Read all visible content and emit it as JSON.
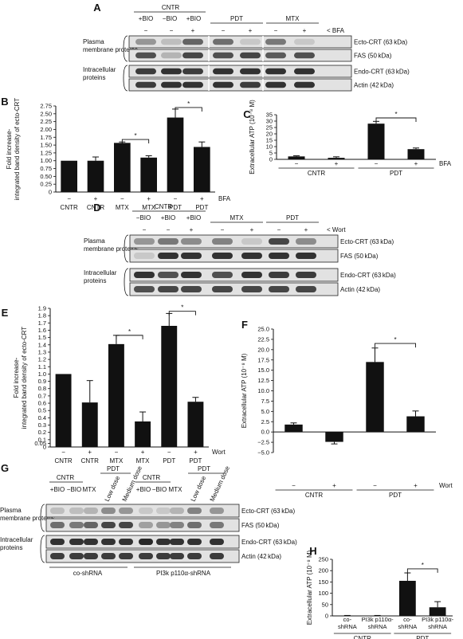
{
  "panels": {
    "A": {
      "label": "A",
      "header_groups": [
        "CNTR",
        "PDT",
        "MTX"
      ],
      "subgroups": [
        "+BIO",
        "−BIO",
        "+BIO"
      ],
      "signs": [
        "−",
        "−",
        "+",
        "−",
        "+",
        "−",
        "+"
      ],
      "treatment": "< BFA",
      "side_labels": [
        "Plasma membrane proteins",
        "Intracellular proteins"
      ],
      "bands": [
        "Ecto-CRT (63 kDa)",
        "FAS (50 kDa)",
        "Endo-CRT (63 kDa)",
        "Actin (42 kDa)"
      ]
    },
    "D": {
      "label": "D",
      "header_groups": [
        "CNTR",
        "MTX",
        "PDT"
      ],
      "subgroups": [
        "−BIO",
        "+BIO",
        "+BIO"
      ],
      "signs": [
        "−",
        "−",
        "+",
        "−",
        "+",
        "−",
        "+"
      ],
      "treatment": "< Wort",
      "side_labels": [
        "Plasma membrane proteins",
        "Intracellular proteins"
      ],
      "bands": [
        "Ecto-CRT (63 kDa)",
        "FAS (50 kDa)",
        "Endo-CRT (63 kDa)",
        "Actin (42 kDa)"
      ]
    },
    "G": {
      "label": "G",
      "groups_left": [
        "CNTR",
        "PDT"
      ],
      "groups_right": [
        "CNTR",
        "PDT"
      ],
      "lanes": [
        "+BIO",
        "−BIO",
        "MTX",
        "Low dose",
        "Medium dose",
        "+BIO",
        "−BIO",
        "MTX",
        "Low dose",
        "Medium dose"
      ],
      "side_labels": [
        "Plasma membrane proteins",
        "Intracellular proteins"
      ],
      "bands": [
        "Ecto-CRT (63 kDa)",
        "FAS (50 kDa)",
        "Endo-CRT (63 kDa)",
        "Actin (42 kDa)"
      ],
      "bottom_labels": [
        "co-shRNA",
        "PI3k p110α-shRNA"
      ]
    }
  },
  "chart_data": [
    {
      "panel": "B",
      "type": "bar",
      "ylabel": "Fold increase-\nintegrated band density of ecto-CRT",
      "ylim": [
        0,
        2.75
      ],
      "yticks": [
        "0",
        "0.25",
        "0.50",
        "0.75",
        "1.00",
        "1.25",
        "1.50",
        "1.75",
        "2.00",
        "2.25",
        "2.50",
        "2.75"
      ],
      "signs": [
        "−",
        "+",
        "−",
        "+",
        "−",
        "+"
      ],
      "categories": [
        "CNTR",
        "CNTR",
        "MTX",
        "MTX",
        "PDT",
        "PDT"
      ],
      "treatment": "BFA",
      "values": [
        1.0,
        1.0,
        1.57,
        1.1,
        2.38,
        1.44
      ],
      "errors": [
        0.0,
        0.12,
        0.03,
        0.06,
        0.27,
        0.16
      ],
      "significance": [
        "*",
        "*"
      ]
    },
    {
      "panel": "C",
      "type": "bar",
      "ylabel": "Extracellular ATP (10⁻⁸ M)",
      "ylim": [
        0,
        35
      ],
      "yticks": [
        "0",
        "5",
        "10",
        "15",
        "20",
        "25",
        "30",
        "35"
      ],
      "signs": [
        "−",
        "+",
        "−",
        "+"
      ],
      "groups": [
        "CNTR",
        "PDT"
      ],
      "treatment": "BFA",
      "values": [
        2.3,
        1.2,
        28.0,
        8.0
      ],
      "errors": [
        0.5,
        0.8,
        1.8,
        0.9
      ],
      "significance": [
        "*"
      ]
    },
    {
      "panel": "E",
      "type": "bar",
      "ylabel": "Fold increase-\nintegrated band density of ecto-CRT",
      "ylim": [
        0,
        1.9
      ],
      "yticks": [
        "0",
        "0.05",
        "0.1",
        "0.2",
        "0.3",
        "0.4",
        "0.5",
        "0.6",
        "0.7",
        "0.8",
        "0.9",
        "1.0",
        "1.1",
        "1.2",
        "1.3",
        "1.4",
        "1.5",
        "1.6",
        "1.7",
        "1.8",
        "1.9"
      ],
      "signs": [
        "−",
        "+",
        "−",
        "+",
        "−",
        "+"
      ],
      "categories": [
        "CNTR",
        "CNTR",
        "MTX",
        "MTX",
        "PDT",
        "PDT"
      ],
      "treatment": "Wort",
      "values": [
        1.0,
        0.61,
        1.41,
        0.35,
        1.66,
        0.62
      ],
      "errors": [
        0.0,
        0.3,
        0.12,
        0.13,
        0.17,
        0.06
      ],
      "significance": [
        "*",
        "*"
      ]
    },
    {
      "panel": "F",
      "type": "bar",
      "ylabel": "Extracellular ATP (10⁻⁸ M)",
      "ylim": [
        -5,
        25
      ],
      "yticks": [
        "−5.0",
        "−2.5",
        "0.0",
        "2.5",
        "5.0",
        "7.5",
        "10.0",
        "12.5",
        "15.0",
        "17.5",
        "20.0",
        "22.5",
        "25.0"
      ],
      "signs": [
        "−",
        "+",
        "−",
        "+"
      ],
      "groups": [
        "CNTR",
        "PDT"
      ],
      "treatment": "Wort",
      "values": [
        1.8,
        -2.4,
        17.0,
        3.8
      ],
      "errors": [
        0.4,
        0.5,
        3.4,
        1.3
      ],
      "significance": [
        "*"
      ]
    },
    {
      "panel": "H",
      "type": "bar",
      "ylabel": "Extracellular ATP (10⁻⁸ M)",
      "ylim": [
        0,
        250
      ],
      "yticks": [
        "0",
        "50",
        "100",
        "150",
        "200",
        "250"
      ],
      "categories": [
        "co-\nshRNA",
        "PI3k p110α-\nshRNA",
        "co-\nshRNA",
        "PI3k p110α-\nshRNA"
      ],
      "groups": [
        "CNTR",
        "PDT"
      ],
      "values": [
        1.5,
        1.5,
        155,
        38
      ],
      "errors": [
        0.5,
        0.5,
        35,
        25
      ],
      "significance": [
        "*"
      ]
    }
  ]
}
